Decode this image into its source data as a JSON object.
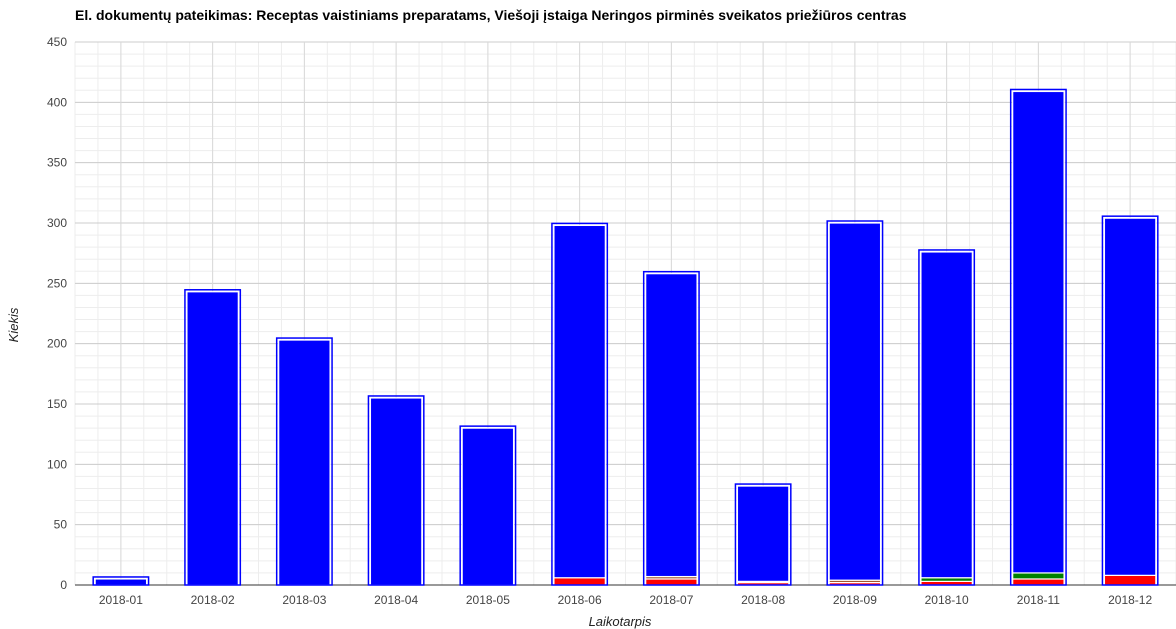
{
  "chart_data": {
    "type": "bar",
    "stacked": true,
    "title": "El. dokumentų pateikimas: Receptas vaistiniams preparatams, Viešoji įstaiga Neringos pirminės sveikatos priežiūros centras",
    "xlabel": "Laikotarpis",
    "ylabel": "Kiekis",
    "ylim": [
      0,
      450
    ],
    "yticks": [
      0,
      50,
      100,
      150,
      200,
      250,
      300,
      350,
      400,
      450
    ],
    "grid": true,
    "categories": [
      "2018-01",
      "2018-02",
      "2018-03",
      "2018-04",
      "2018-05",
      "2018-06",
      "2018-07",
      "2018-08",
      "2018-09",
      "2018-10",
      "2018-11",
      "2018-12"
    ],
    "series": [
      {
        "color": "#ff0000",
        "values": [
          0,
          0,
          0,
          0,
          0,
          6,
          5,
          2,
          2,
          3,
          5,
          8
        ]
      },
      {
        "color": "#a0522d",
        "values": [
          0,
          0,
          0,
          0,
          0,
          0,
          2,
          1,
          2,
          0,
          0,
          0
        ]
      },
      {
        "color": "#008000",
        "values": [
          0,
          0,
          0,
          0,
          0,
          0,
          0,
          0,
          0,
          3,
          5,
          0
        ]
      },
      {
        "color": "#0000ff",
        "values": [
          5,
          243,
          203,
          155,
          130,
          292,
          251,
          79,
          296,
          270,
          399,
          296
        ]
      }
    ]
  }
}
